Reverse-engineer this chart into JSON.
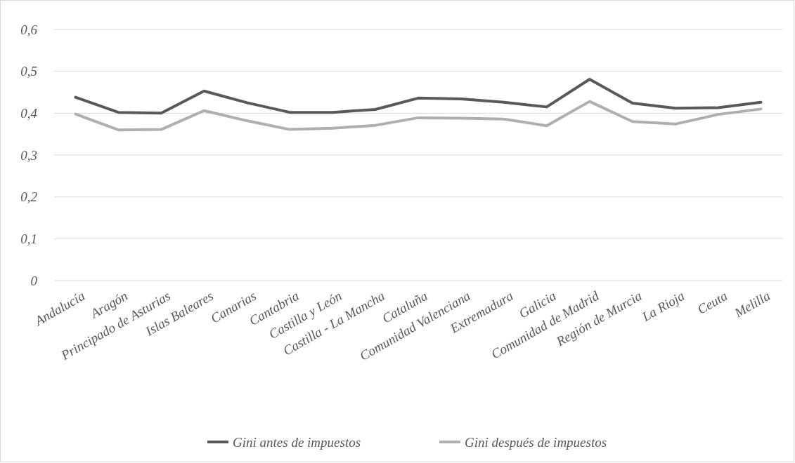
{
  "chart_data": {
    "type": "line",
    "categories": [
      "Andalucía",
      "Aragón",
      "Principado de Asturias",
      "Islas Baleares",
      "Canarias",
      "Cantabria",
      "Castilla y León",
      "Castilla - La Mancha",
      "Cataluña",
      "Comunidad Valenciana",
      "Extremadura",
      "Galicia",
      "Comunidad de Madrid",
      "Región de Murcia",
      "La Rioja",
      "Ceuta",
      "Melilla"
    ],
    "series": [
      {
        "name": "Gini antes de impuestos",
        "color": "#595959",
        "values": [
          0.438,
          0.402,
          0.4,
          0.453,
          0.425,
          0.402,
          0.402,
          0.409,
          0.436,
          0.434,
          0.426,
          0.415,
          0.481,
          0.424,
          0.412,
          0.413,
          0.426
        ]
      },
      {
        "name": "Gini después de impuestos",
        "color": "#afafaf",
        "values": [
          0.398,
          0.36,
          0.361,
          0.406,
          0.382,
          0.361,
          0.364,
          0.371,
          0.389,
          0.388,
          0.386,
          0.37,
          0.428,
          0.38,
          0.374,
          0.397,
          0.41
        ]
      }
    ],
    "ylim": [
      0,
      0.6
    ],
    "yticks": [
      {
        "value": 0,
        "label": "0"
      },
      {
        "value": 0.1,
        "label": "0,1"
      },
      {
        "value": 0.2,
        "label": "0,2"
      },
      {
        "value": 0.3,
        "label": "0,3"
      },
      {
        "value": 0.4,
        "label": "0,4"
      },
      {
        "value": 0.5,
        "label": "0,5"
      },
      {
        "value": 0.6,
        "label": "0,6"
      }
    ],
    "grid": "y",
    "legend": "bottom",
    "marker": "none",
    "line_style": "solid"
  }
}
